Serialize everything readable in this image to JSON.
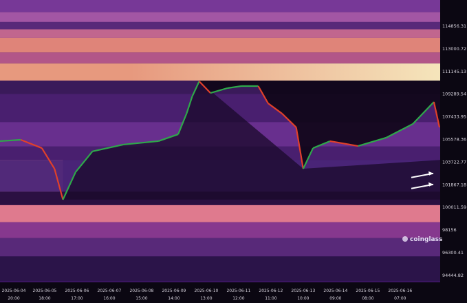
{
  "chart_data": {
    "type": "heatmap",
    "title": "",
    "xlabel": "",
    "ylabel": "",
    "y_ticks": [
      "114856.31",
      "113000.72",
      "111145.13",
      "109289.54",
      "107433.95",
      "105578.36",
      "103722.77",
      "101867.18",
      "100011.59",
      "98156",
      "96300.41",
      "94444.82"
    ],
    "x_ticks": [
      {
        "date": "2025-06-04",
        "time": "20:00"
      },
      {
        "date": "2025-06-05",
        "time": "18:00"
      },
      {
        "date": "2025-06-06",
        "time": "17:00"
      },
      {
        "date": "2025-06-07",
        "time": "16:00"
      },
      {
        "date": "2025-06-08",
        "time": "15:00"
      },
      {
        "date": "2025-06-09",
        "time": "14:00"
      },
      {
        "date": "2025-06-10",
        "time": "13:00"
      },
      {
        "date": "2025-06-11",
        "time": "12:00"
      },
      {
        "date": "2025-06-12",
        "time": "11:00"
      },
      {
        "date": "2025-06-13",
        "time": "10:00"
      },
      {
        "date": "2025-06-14",
        "time": "09:00"
      },
      {
        "date": "2025-06-15",
        "time": "08:00"
      },
      {
        "date": "2025-06-16",
        "time": "07:00"
      }
    ],
    "price_series": [
      [
        "2025-06-04T10:00",
        105440
      ],
      [
        "2025-06-05T01:00",
        105550
      ],
      [
        "2025-06-05T16:00",
        104870
      ],
      [
        "2025-06-06T01:00",
        103180
      ],
      [
        "2025-06-06T07:00",
        100650
      ],
      [
        "2025-06-06T16:00",
        102900
      ],
      [
        "2025-06-07T04:00",
        104600
      ],
      [
        "2025-06-08T02:00",
        105160
      ],
      [
        "2025-06-09T03:00",
        105440
      ],
      [
        "2025-06-09T17:00",
        106000
      ],
      [
        "2025-06-09T23:00",
        107700
      ],
      [
        "2025-06-10T03:00",
        109100
      ],
      [
        "2025-06-10T08:00",
        110340
      ],
      [
        "2025-06-10T16:00",
        109380
      ],
      [
        "2025-06-11T04:00",
        109780
      ],
      [
        "2025-06-11T14:00",
        109950
      ],
      [
        "2025-06-12T02:00",
        109950
      ],
      [
        "2025-06-12T09:00",
        108540
      ],
      [
        "2025-06-12T19:00",
        107690
      ],
      [
        "2025-06-13T05:00",
        106570
      ],
      [
        "2025-06-13T10:00",
        103180
      ],
      [
        "2025-06-13T17:00",
        104870
      ],
      [
        "2025-06-14T05:00",
        105440
      ],
      [
        "2025-06-15T01:00",
        105040
      ],
      [
        "2025-06-15T21:00",
        105720
      ],
      [
        "2025-06-16T16:00",
        106850
      ],
      [
        "2025-06-17T07:00",
        108650
      ],
      [
        "2025-06-17T11:00",
        106570
      ]
    ],
    "liquidation_bands": [
      {
        "lo": 116000,
        "hi": 117200,
        "color": "#7a3a9a"
      },
      {
        "lo": 115200,
        "hi": 116000,
        "color": "#a85aa8"
      },
      {
        "lo": 114600,
        "hi": 115200,
        "color": "#5a2a7a"
      },
      {
        "lo": 113900,
        "hi": 114600,
        "color": "#c86a90"
      },
      {
        "lo": 112700,
        "hi": 113900,
        "color": "#e88a7a"
      },
      {
        "lo": 111800,
        "hi": 112700,
        "color": "#b85a8a"
      },
      {
        "lo": 110400,
        "hi": 111800,
        "color": "#f0a080",
        "right_color": "#fff0c0"
      },
      {
        "lo": 109300,
        "hi": 110400,
        "color": "#3a1a5a"
      },
      {
        "lo": 107000,
        "hi": 109300,
        "color": "#4a2070"
      },
      {
        "lo": 105000,
        "hi": 107000,
        "color": "#6a3090"
      },
      {
        "lo": 103900,
        "hi": 105000,
        "color": "#4a2070"
      },
      {
        "lo": 101300,
        "hi": 103900,
        "color": "#e07a8a",
        "end": "2025-06-06T07:00"
      },
      {
        "lo": 101300,
        "hi": 103900,
        "color": "#4a2578"
      },
      {
        "lo": 100200,
        "hi": 101300,
        "color": "#2a1040"
      },
      {
        "lo": 98800,
        "hi": 100200,
        "color": "#e88090"
      },
      {
        "lo": 97500,
        "hi": 98800,
        "color": "#8a3a90"
      },
      {
        "lo": 96000,
        "hi": 97500,
        "color": "#5a2a7a"
      },
      {
        "lo": 94000,
        "hi": 96000,
        "color": "#2a1448"
      }
    ],
    "colors": {
      "up": "#2ea84a",
      "down": "#e0402a",
      "cleared": "#0e0616",
      "background": "#0b0712",
      "annotation_arrow": "#ffffff"
    },
    "annotations": [
      {
        "type": "arrow",
        "price": 102800
      },
      {
        "type": "arrow",
        "price": 101900
      }
    ]
  },
  "watermark": "coinglass"
}
